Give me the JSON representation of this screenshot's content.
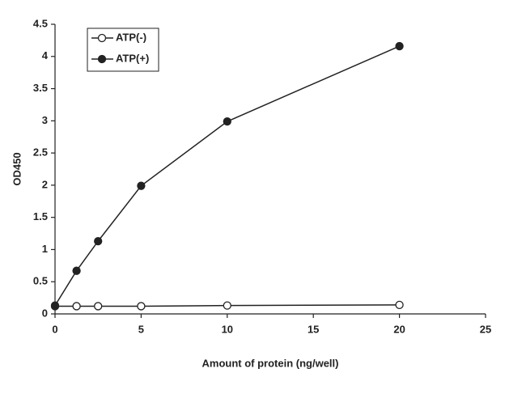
{
  "chart_data": {
    "type": "line",
    "x_label": "Amount of protein (ng/well)",
    "y_label": "OD450",
    "x": [
      0,
      1.25,
      2.5,
      5,
      10,
      20
    ],
    "series": [
      {
        "name": "ATP(-)",
        "color": "#222222",
        "marker_fill": "#ffffff",
        "values": [
          0.12,
          0.12,
          0.12,
          0.12,
          0.13,
          0.14
        ]
      },
      {
        "name": "ATP(+)",
        "color": "#222222",
        "marker_fill": "#222222",
        "values": [
          0.13,
          0.67,
          1.13,
          1.99,
          2.99,
          4.16
        ]
      }
    ],
    "xlim": [
      0,
      25
    ],
    "xticks": [
      0,
      5,
      10,
      15,
      20,
      25
    ],
    "ylim": [
      0,
      4.5
    ],
    "yticks": [
      0,
      0.5,
      1,
      1.5,
      2,
      2.5,
      3,
      3.5,
      4,
      4.5
    ],
    "grid": false,
    "legend": "upper left"
  }
}
